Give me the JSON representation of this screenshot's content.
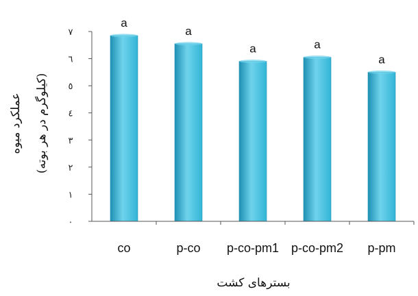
{
  "chart_data": {
    "type": "bar",
    "categories": [
      "co",
      "p-co",
      "p-co-pm1",
      "p-co-pm2",
      "p-pm"
    ],
    "values": [
      6.85,
      6.55,
      5.9,
      6.05,
      5.5
    ],
    "data_labels": [
      "a",
      "a",
      "a",
      "a",
      "a"
    ],
    "yticks": [
      0,
      1,
      2,
      3,
      4,
      5,
      6,
      7
    ],
    "ytick_labels": [
      "٠",
      "١",
      "٢",
      "٣",
      "٤",
      "٥",
      "٦",
      "٧"
    ],
    "ylim": [
      0,
      7
    ],
    "ylabel_line1": "عملکرد میوه",
    "ylabel_line2": "(کیلوگرم در هر بوته)",
    "xlabel": "بسترهای کشت",
    "grid": false,
    "colors": {
      "bar": "#33b5d6",
      "bar_dark": "#1e90b3",
      "bar_light": "#6fd3ec",
      "axis": "#555555"
    }
  }
}
